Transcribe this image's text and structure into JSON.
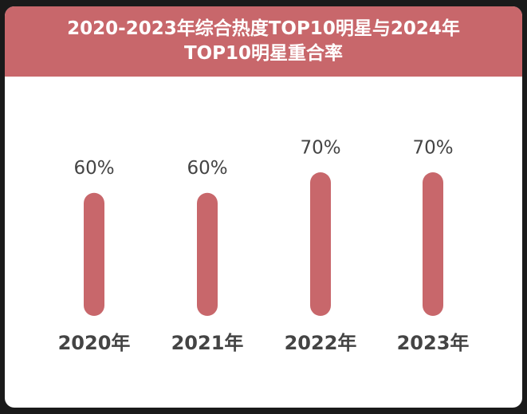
{
  "chart_data": {
    "type": "bar",
    "title": [
      "2020-2023年综合热度TOP10明星与2024年",
      "TOP10明星重合率"
    ],
    "categories": [
      "2020年",
      "2021年",
      "2022年",
      "2023年"
    ],
    "values": [
      60,
      60,
      70,
      70
    ],
    "value_labels": [
      "60%",
      "60%",
      "70%",
      "70%"
    ],
    "color": "#c8676b"
  }
}
